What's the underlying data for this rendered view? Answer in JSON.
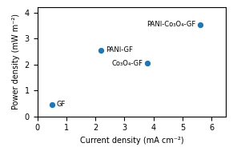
{
  "chart_data": {
    "type": "scatter",
    "xlabel": "Current density (mA cm⁻²)",
    "ylabel": "Power density (mW m⁻²)",
    "x": [
      0.5,
      2.2,
      3.8,
      5.6
    ],
    "values": [
      0.45,
      2.55,
      2.05,
      3.55
    ],
    "labels": [
      "GF",
      "PANI-GF",
      "Co₃O₄-GF",
      "PANI-Co₃O₄-GF"
    ],
    "xlim": [
      0,
      6.5
    ],
    "ylim": [
      0,
      4.2
    ],
    "xticks": [
      0,
      1,
      2,
      3,
      4,
      5,
      6
    ],
    "yticks": [
      0,
      1,
      2,
      3,
      4
    ],
    "grid": false
  }
}
